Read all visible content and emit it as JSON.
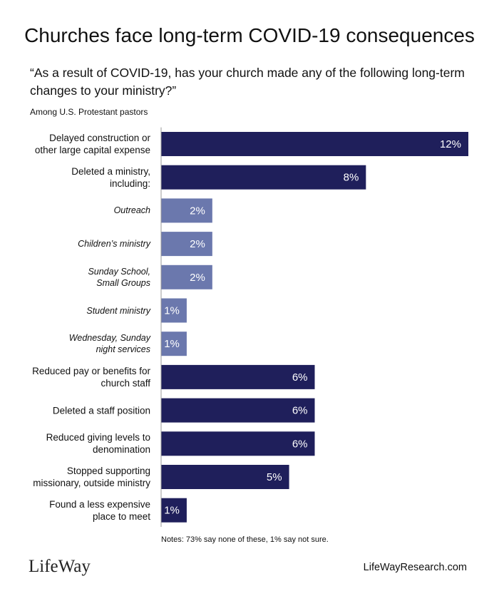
{
  "chart_data": {
    "type": "bar",
    "orientation": "horizontal",
    "title": "Churches face long-term COVID-19 consequences",
    "subtitle": "“As a result of COVID-19, has your church made any of the following long-term\nchanges to your ministry?”",
    "population": "Among U.S. Protestant pastors",
    "categories": [
      "Delayed construction or\nother large capital expense",
      "Deleted a ministry,\nincluding:",
      "Outreach",
      "Children’s ministry",
      "Sunday School,\nSmall Groups",
      "Student ministry",
      "Wednesday, Sunday\nnight services",
      "Reduced pay or benefits for\nchurch staff",
      "Deleted a staff position",
      "Reduced giving levels to\ndenomination",
      "Stopped supporting\nmissionary, outside ministry",
      "Found a less expensive\nplace to meet"
    ],
    "values": [
      12,
      8,
      2,
      2,
      2,
      1,
      1,
      6,
      6,
      6,
      5,
      1
    ],
    "value_labels": [
      "12%",
      "8%",
      "2%",
      "2%",
      "2%",
      "1%",
      "1%",
      "6%",
      "6%",
      "6%",
      "5%",
      "1%"
    ],
    "colors": [
      "#1f1f5b",
      "#1f1f5b",
      "#6b78ad",
      "#6b78ad",
      "#6b78ad",
      "#6b78ad",
      "#6b78ad",
      "#1f1f5b",
      "#1f1f5b",
      "#1f1f5b",
      "#1f1f5b",
      "#1f1f5b"
    ],
    "xlim": [
      0,
      12
    ],
    "notes": "Notes: 73% say none of these, 1% say not sure.",
    "logo": "LifeWay",
    "source": "LifeWayResearch.com"
  }
}
